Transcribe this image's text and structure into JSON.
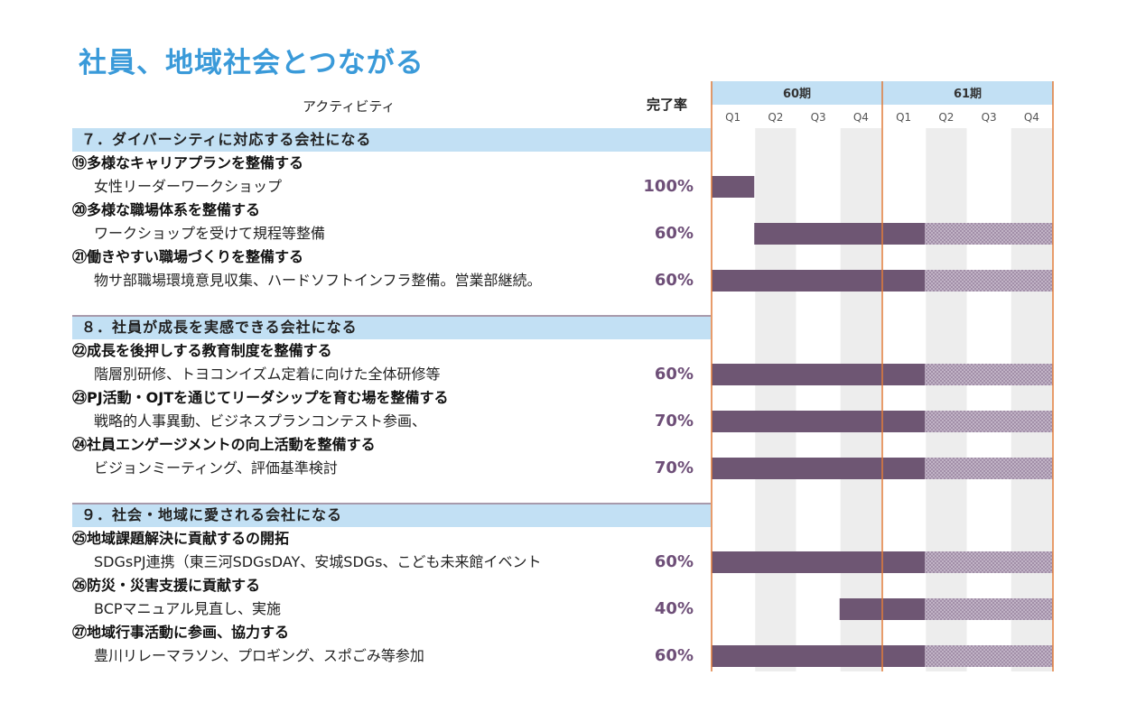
{
  "title": "社員、地域社会とつながる",
  "header": {
    "activity": "アクティビティ",
    "rate": "完了率"
  },
  "chart_data": {
    "type": "gantt",
    "periods": [
      {
        "label": "60期",
        "quarters": [
          "Q1",
          "Q2",
          "Q3",
          "Q4"
        ]
      },
      {
        "label": "61期",
        "quarters": [
          "Q1",
          "Q2",
          "Q3",
          "Q4"
        ]
      }
    ],
    "rows": [
      {
        "kind": "section",
        "label": "７．ダイバーシティに対応する会社になる"
      },
      {
        "kind": "goal",
        "label": "⑲多様なキャリアプランを整備する"
      },
      {
        "kind": "item",
        "label": "女性リーダーワークショップ",
        "rate": "100%",
        "bar": {
          "start": 0,
          "solid_end": 1,
          "end": 1
        }
      },
      {
        "kind": "goal",
        "label": "⑳多様な職場体系を整備する"
      },
      {
        "kind": "item",
        "label": "ワークショップを受けて規程等整備",
        "rate": "60%",
        "bar": {
          "start": 1,
          "solid_end": 5,
          "end": 8
        }
      },
      {
        "kind": "goal",
        "label": "㉑働きやすい職場づくりを整備する"
      },
      {
        "kind": "item",
        "label": "物サ部職場環境意見収集、ハードソフトインフラ整備。営業部継続。",
        "rate": "60%",
        "bar": {
          "start": 0,
          "solid_end": 5,
          "end": 8
        }
      },
      {
        "kind": "blank"
      },
      {
        "kind": "section",
        "label": "８．社員が成長を実感できる会社になる"
      },
      {
        "kind": "goal",
        "label": "㉒成長を後押しする教育制度を整備する"
      },
      {
        "kind": "item",
        "label": "階層別研修、トヨコンイズム定着に向けた全体研修等",
        "rate": "60%",
        "bar": {
          "start": 0,
          "solid_end": 5,
          "end": 8
        }
      },
      {
        "kind": "goal",
        "label": "㉓PJ活動・OJTを通じてリーダシップを育む場を整備する"
      },
      {
        "kind": "item",
        "label": "戦略的人事異動、ビジネスプランコンテスト参画、",
        "rate": "70%",
        "bar": {
          "start": 0,
          "solid_end": 5,
          "end": 8
        }
      },
      {
        "kind": "goal",
        "label": "㉔社員エンゲージメントの向上活動を整備する"
      },
      {
        "kind": "item",
        "label": "ビジョンミーティング、評価基準検討",
        "rate": "70%",
        "bar": {
          "start": 0,
          "solid_end": 5,
          "end": 8
        }
      },
      {
        "kind": "blank"
      },
      {
        "kind": "section",
        "label": "９．社会・地域に愛される会社になる"
      },
      {
        "kind": "goal",
        "label": "㉕地域課題解決に貢献するの開拓"
      },
      {
        "kind": "item",
        "label": "SDGsPJ連携（東三河SDGsDAY、安城SDGs、こども未来館イベント",
        "rate": "60%",
        "bar": {
          "start": 0,
          "solid_end": 5,
          "end": 8
        }
      },
      {
        "kind": "goal",
        "label": "㉖防災・災害支援に貢献する"
      },
      {
        "kind": "item",
        "label": "BCPマニュアル見直し、実施",
        "rate": "40%",
        "bar": {
          "start": 3,
          "solid_end": 5,
          "end": 8
        }
      },
      {
        "kind": "goal",
        "label": "㉗地域行事活動に参画、協力する"
      },
      {
        "kind": "item",
        "label": "豊川リレーマラソン、プロギング、スポごみ等参加",
        "rate": "60%",
        "bar": {
          "start": 0,
          "solid_end": 5,
          "end": 8
        }
      }
    ]
  },
  "colors": {
    "title": "#3a9ad9",
    "section_bg": "#c2e0f4",
    "period_header_bg": "#c2e0f4",
    "bar_solid": "#6e5673",
    "bar_hatched": "#b7a4bd",
    "rate_text": "#6e4f78",
    "year_line": "#e07b3a",
    "column_shade": "#ededed"
  }
}
